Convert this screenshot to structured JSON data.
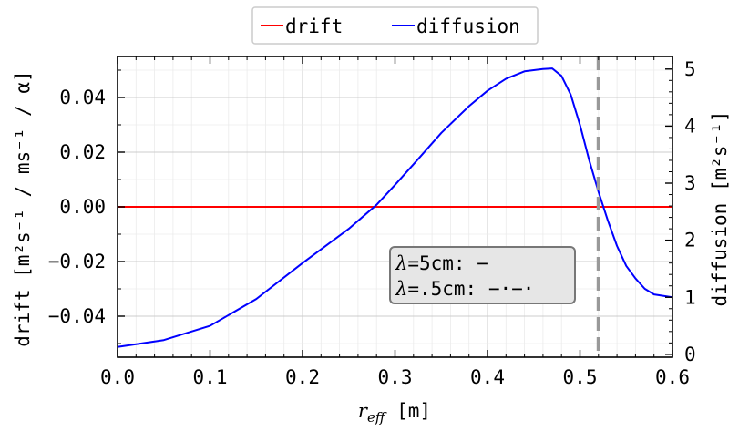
{
  "chart_data": {
    "type": "line",
    "xlabel": {
      "symbol": "r",
      "subscript": "eff",
      "unit": " [m]"
    },
    "ylabel_left": "drift [m²s⁻¹ / ms⁻¹ / α]",
    "ylabel_right": "diffusion [m²s⁻¹]",
    "xlim": [
      0,
      0.6
    ],
    "ylim_left": [
      -0.055,
      0.055
    ],
    "ylim_right": [
      -0.05,
      5.22
    ],
    "x_ticks": [
      "0.0",
      "0.1",
      "0.2",
      "0.3",
      "0.4",
      "0.5",
      "0.6"
    ],
    "y_left_ticks": [
      "0.04",
      "0.02",
      "0.00",
      "−0.02",
      "−0.04"
    ],
    "y_right_ticks": [
      "5",
      "4",
      "3",
      "2",
      "1",
      "0"
    ],
    "grid": true,
    "legend": {
      "placement": "top-center",
      "entries": [
        "drift",
        "diffusion"
      ]
    },
    "colors": {
      "drift": "#ff0000",
      "diffusion": "#0000ff",
      "vline": "#999999"
    },
    "series": [
      {
        "name": "drift",
        "axis": "left",
        "x": [
          0.0,
          0.1,
          0.2,
          0.3,
          0.4,
          0.5,
          0.6
        ],
        "y": [
          0,
          0,
          0,
          0,
          0,
          0,
          0
        ]
      },
      {
        "name": "diffusion",
        "axis": "right",
        "x": [
          0.0,
          0.05,
          0.1,
          0.15,
          0.2,
          0.25,
          0.28,
          0.3,
          0.32,
          0.35,
          0.38,
          0.4,
          0.42,
          0.44,
          0.46,
          0.47,
          0.48,
          0.49,
          0.5,
          0.51,
          0.52,
          0.525,
          0.53,
          0.54,
          0.55,
          0.56,
          0.57,
          0.58,
          0.6
        ],
        "y": [
          0.13,
          0.25,
          0.5,
          0.97,
          1.6,
          2.2,
          2.62,
          2.97,
          3.33,
          3.88,
          4.35,
          4.62,
          4.83,
          4.96,
          5.0,
          5.01,
          4.88,
          4.55,
          4.02,
          3.4,
          2.85,
          2.6,
          2.35,
          1.9,
          1.55,
          1.33,
          1.15,
          1.05,
          1.0
        ]
      }
    ],
    "vline": {
      "x": 0.52,
      "style": "dashed"
    },
    "annotation": {
      "lines": [
        {
          "symbol": "λ",
          "text": "=5cm: −"
        },
        {
          "symbol": "λ",
          "text": "=.5cm: −·−·"
        }
      ]
    }
  }
}
